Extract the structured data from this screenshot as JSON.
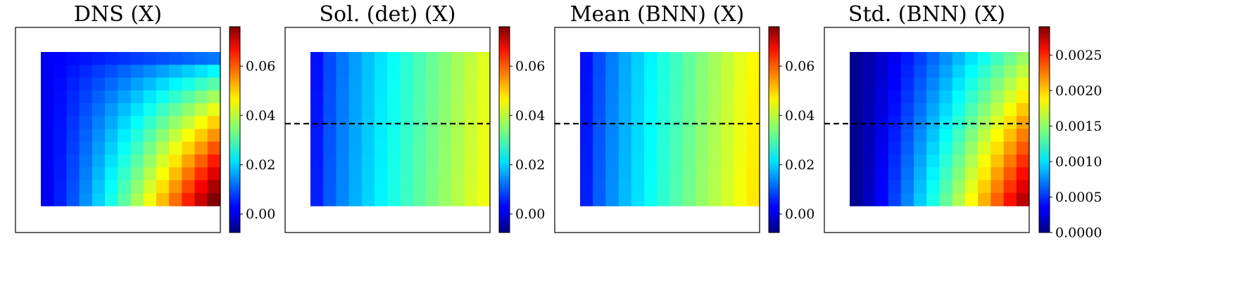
{
  "chart_data": [
    {
      "type": "heatmap",
      "title": "DNS (X)",
      "colormap": "jet",
      "colorbar": {
        "range": [
          -0.0075,
          0.076
        ],
        "ticks": [
          0.0,
          0.02,
          0.04,
          0.06
        ],
        "tick_labels": [
          "0.00",
          "0.02",
          "0.04",
          "0.06"
        ]
      },
      "dashed_line": false,
      "grid": {
        "rows": 12,
        "cols": 14,
        "pattern": "corner"
      },
      "axes_visible": false
    },
    {
      "type": "heatmap",
      "title": "Sol. (det) (X)",
      "colormap": "jet",
      "colorbar": {
        "range": [
          -0.0075,
          0.076
        ],
        "ticks": [
          0.0,
          0.02,
          0.04,
          0.06
        ],
        "tick_labels": [
          "0.00",
          "0.02",
          "0.04",
          "0.06"
        ]
      },
      "dashed_line": true,
      "grid": {
        "rows": 12,
        "cols": 14,
        "pattern": "columns",
        "value_min": 0.004,
        "value_max": 0.042
      },
      "axes_visible": false
    },
    {
      "type": "heatmap",
      "title": "Mean (BNN) (X)",
      "colormap": "jet",
      "colorbar": {
        "range": [
          -0.0075,
          0.076
        ],
        "ticks": [
          0.0,
          0.02,
          0.04,
          0.06
        ],
        "tick_labels": [
          "0.00",
          "0.02",
          "0.04",
          "0.06"
        ]
      },
      "dashed_line": true,
      "grid": {
        "rows": 12,
        "cols": 14,
        "pattern": "columns",
        "value_min": 0.004,
        "value_max": 0.045
      },
      "axes_visible": false
    },
    {
      "type": "heatmap",
      "title": "Std. (BNN) (X)",
      "colormap": "jet",
      "colorbar": {
        "range": [
          0.0,
          0.0029
        ],
        "ticks": [
          0.0,
          0.0005,
          0.001,
          0.0015,
          0.002,
          0.0025
        ],
        "tick_labels": [
          "0.0000",
          "0.0005",
          "0.0010",
          "0.0015",
          "0.0020",
          "0.0025"
        ]
      },
      "dashed_line": true,
      "grid": {
        "rows": 12,
        "cols": 14,
        "pattern": "std"
      },
      "axes_visible": false
    }
  ]
}
